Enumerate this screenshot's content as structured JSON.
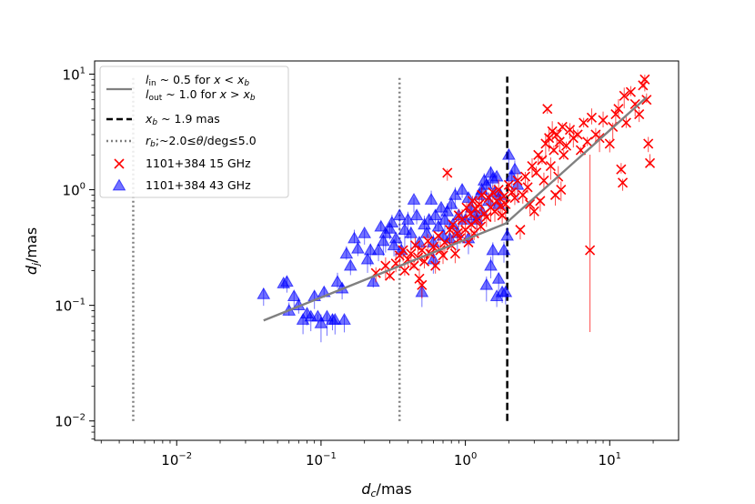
{
  "chart_data": {
    "type": "scatter",
    "title": "",
    "xlabel": "d_c/mas",
    "ylabel": "d_j/mas",
    "xscale": "log",
    "yscale": "log",
    "xlim": [
      0.0027,
      30
    ],
    "ylim": [
      0.0068,
      13
    ],
    "grid": false,
    "legend_position": "top-left",
    "x_ticks": [
      {
        "value": 0.01,
        "base": "10",
        "exp": "−2"
      },
      {
        "value": 0.1,
        "base": "10",
        "exp": "−1"
      },
      {
        "value": 1,
        "base": "10",
        "exp": "0"
      },
      {
        "value": 10,
        "base": "10",
        "exp": "1"
      }
    ],
    "y_ticks": [
      {
        "value": 0.01,
        "base": "10",
        "exp": "−2"
      },
      {
        "value": 0.1,
        "base": "10",
        "exp": "−1"
      },
      {
        "value": 1,
        "base": "10",
        "exp": "0"
      },
      {
        "value": 10,
        "base": "10",
        "exp": "1"
      }
    ],
    "legend": [
      {
        "key": "fit",
        "line1": "l_in ~ 0.5 for x < x_b",
        "line2": "l_out ~ 1.0 for x > x_b"
      },
      {
        "key": "xb",
        "text": "x_b ~ 1.9 mas"
      },
      {
        "key": "rb",
        "text": "r_b;~2.0≤θ/deg≤5.0"
      },
      {
        "key": "s15",
        "text": "1101+384 15 GHz"
      },
      {
        "key": "s43",
        "text": "1101+384 43 GHz"
      }
    ],
    "fit": {
      "color": "#808080",
      "points": [
        [
          0.04,
          0.074
        ],
        [
          1.9,
          0.51
        ],
        [
          18,
          6.3
        ]
      ]
    },
    "xb_line": {
      "x": 1.95,
      "y_range": [
        0.01,
        9.5
      ],
      "color": "#000000"
    },
    "rb_lines": {
      "x": [
        0.005,
        0.35
      ],
      "y_range": [
        0.01,
        9.5
      ],
      "color": "#808080"
    },
    "series": [
      {
        "name": "1101+384 15 GHz",
        "marker": "x",
        "color": "#ff0000",
        "points": [
          [
            0.24,
            0.19
          ],
          [
            0.28,
            0.22
          ],
          [
            0.3,
            0.18
          ],
          [
            0.33,
            0.23
          ],
          [
            0.35,
            0.27
          ],
          [
            0.37,
            0.3
          ],
          [
            0.38,
            0.2
          ],
          [
            0.4,
            0.25
          ],
          [
            0.42,
            0.28
          ],
          [
            0.44,
            0.22
          ],
          [
            0.45,
            0.33
          ],
          [
            0.47,
            0.26
          ],
          [
            0.48,
            0.17
          ],
          [
            0.5,
            0.3
          ],
          [
            0.5,
            0.15
          ],
          [
            0.52,
            0.24
          ],
          [
            0.55,
            0.36
          ],
          [
            0.57,
            0.28
          ],
          [
            0.6,
            0.32
          ],
          [
            0.62,
            0.22
          ],
          [
            0.65,
            0.4
          ],
          [
            0.67,
            0.3
          ],
          [
            0.7,
            0.27
          ],
          [
            0.72,
            0.35
          ],
          [
            0.75,
            1.4
          ],
          [
            0.78,
            0.45
          ],
          [
            0.8,
            0.33
          ],
          [
            0.82,
            0.5
          ],
          [
            0.85,
            0.28
          ],
          [
            0.88,
            0.42
          ],
          [
            0.9,
            0.6
          ],
          [
            0.92,
            0.38
          ],
          [
            0.95,
            0.55
          ],
          [
            1.0,
            0.45
          ],
          [
            1.02,
            0.7
          ],
          [
            1.05,
            0.35
          ],
          [
            1.08,
            0.62
          ],
          [
            1.1,
            0.5
          ],
          [
            1.12,
            0.8
          ],
          [
            1.15,
            0.42
          ],
          [
            1.18,
            0.68
          ],
          [
            1.2,
            0.55
          ],
          [
            1.25,
            0.75
          ],
          [
            1.28,
            0.48
          ],
          [
            1.3,
            0.9
          ],
          [
            1.35,
            0.62
          ],
          [
            1.4,
            0.58
          ],
          [
            1.45,
            0.85
          ],
          [
            1.5,
            0.7
          ],
          [
            1.55,
            0.95
          ],
          [
            1.6,
            0.65
          ],
          [
            1.65,
            0.8
          ],
          [
            1.7,
            1.0
          ],
          [
            1.75,
            0.72
          ],
          [
            1.8,
            0.6
          ],
          [
            1.85,
            0.88
          ],
          [
            1.9,
            0.75
          ],
          [
            2.0,
            1.1
          ],
          [
            2.1,
            0.95
          ],
          [
            2.2,
            0.85
          ],
          [
            2.3,
            1.2
          ],
          [
            2.4,
            0.45
          ],
          [
            2.5,
            0.9
          ],
          [
            2.6,
            1.3
          ],
          [
            2.7,
            1.05
          ],
          [
            2.8,
            0.75
          ],
          [
            2.9,
            1.6
          ],
          [
            3.0,
            0.65
          ],
          [
            3.1,
            1.4
          ],
          [
            3.2,
            2.0
          ],
          [
            3.3,
            0.8
          ],
          [
            3.4,
            1.8
          ],
          [
            3.5,
            1.2
          ],
          [
            3.6,
            2.5
          ],
          [
            3.7,
            5.0
          ],
          [
            3.8,
            2.8
          ],
          [
            3.9,
            1.6
          ],
          [
            4.0,
            3.2
          ],
          [
            4.1,
            2.2
          ],
          [
            4.2,
            0.9
          ],
          [
            4.3,
            3.0
          ],
          [
            4.4,
            1.3
          ],
          [
            4.5,
            2.6
          ],
          [
            4.6,
            1.0
          ],
          [
            4.7,
            3.5
          ],
          [
            4.8,
            2.0
          ],
          [
            5.0,
            2.4
          ],
          [
            5.3,
            3.3
          ],
          [
            5.6,
            2.8
          ],
          [
            6.0,
            3.0
          ],
          [
            6.3,
            2.2
          ],
          [
            6.6,
            3.8
          ],
          [
            7.0,
            2.6
          ],
          [
            7.3,
            0.3
          ],
          [
            7.5,
            4.2
          ],
          [
            8.0,
            3.0
          ],
          [
            8.5,
            2.8
          ],
          [
            9.0,
            4.0
          ],
          [
            10.0,
            2.5
          ],
          [
            10.5,
            3.5
          ],
          [
            11.0,
            4.5
          ],
          [
            11.5,
            5.0
          ],
          [
            12.0,
            1.5
          ],
          [
            12.3,
            1.15
          ],
          [
            12.6,
            6.5
          ],
          [
            13.0,
            3.8
          ],
          [
            14.0,
            7.0
          ],
          [
            15.0,
            5.5
          ],
          [
            16.0,
            4.5
          ],
          [
            17.0,
            8.0
          ],
          [
            17.5,
            9.0
          ],
          [
            18.0,
            6.0
          ],
          [
            18.5,
            2.5
          ],
          [
            19.0,
            1.7
          ]
        ]
      },
      {
        "name": "1101+384 43 GHz",
        "marker": "triangle",
        "color": "#0000ff",
        "points": [
          [
            0.04,
            0.125
          ],
          [
            0.055,
            0.155
          ],
          [
            0.058,
            0.16
          ],
          [
            0.06,
            0.09
          ],
          [
            0.065,
            0.12
          ],
          [
            0.07,
            0.1
          ],
          [
            0.075,
            0.075
          ],
          [
            0.08,
            0.085
          ],
          [
            0.085,
            0.08
          ],
          [
            0.09,
            0.12
          ],
          [
            0.095,
            0.08
          ],
          [
            0.1,
            0.07
          ],
          [
            0.105,
            0.13
          ],
          [
            0.11,
            0.08
          ],
          [
            0.12,
            0.075
          ],
          [
            0.125,
            0.075
          ],
          [
            0.13,
            0.16
          ],
          [
            0.14,
            0.14
          ],
          [
            0.145,
            0.075
          ],
          [
            0.15,
            0.28
          ],
          [
            0.16,
            0.22
          ],
          [
            0.17,
            0.38
          ],
          [
            0.18,
            0.31
          ],
          [
            0.2,
            0.42
          ],
          [
            0.21,
            0.25
          ],
          [
            0.22,
            0.3
          ],
          [
            0.23,
            0.16
          ],
          [
            0.25,
            0.3
          ],
          [
            0.26,
            0.48
          ],
          [
            0.27,
            0.36
          ],
          [
            0.28,
            0.42
          ],
          [
            0.3,
            0.46
          ],
          [
            0.31,
            0.52
          ],
          [
            0.32,
            0.33
          ],
          [
            0.33,
            0.38
          ],
          [
            0.35,
            0.6
          ],
          [
            0.36,
            0.3
          ],
          [
            0.38,
            0.45
          ],
          [
            0.4,
            0.55
          ],
          [
            0.42,
            0.42
          ],
          [
            0.44,
            0.82
          ],
          [
            0.46,
            0.6
          ],
          [
            0.48,
            0.35
          ],
          [
            0.5,
            0.13
          ],
          [
            0.52,
            0.5
          ],
          [
            0.54,
            0.42
          ],
          [
            0.56,
            0.55
          ],
          [
            0.58,
            0.82
          ],
          [
            0.6,
            0.35
          ],
          [
            0.62,
            0.6
          ],
          [
            0.65,
            0.48
          ],
          [
            0.68,
            0.7
          ],
          [
            0.7,
            0.4
          ],
          [
            0.72,
            0.55
          ],
          [
            0.75,
            0.65
          ],
          [
            0.78,
            0.38
          ],
          [
            0.8,
            0.75
          ],
          [
            0.82,
            0.5
          ],
          [
            0.85,
            0.9
          ],
          [
            0.88,
            0.42
          ],
          [
            0.9,
            0.6
          ],
          [
            0.95,
            1.0
          ],
          [
            1.0,
            0.55
          ],
          [
            1.05,
            0.85
          ],
          [
            1.1,
            0.7
          ],
          [
            1.15,
            0.6
          ],
          [
            1.2,
            0.55
          ],
          [
            1.25,
            0.9
          ],
          [
            1.3,
            0.65
          ],
          [
            1.35,
            1.2
          ],
          [
            1.4,
            1.1
          ],
          [
            1.45,
            0.8
          ],
          [
            1.5,
            1.4
          ],
          [
            1.55,
            1.25
          ],
          [
            1.6,
            0.95
          ],
          [
            1.65,
            1.3
          ],
          [
            1.7,
            0.75
          ],
          [
            1.75,
            0.9
          ],
          [
            1.8,
            0.13
          ],
          [
            1.85,
            0.3
          ],
          [
            1.9,
            0.13
          ],
          [
            1.95,
            0.4
          ],
          [
            2.0,
            2.0
          ],
          [
            2.1,
            1.3
          ],
          [
            2.2,
            1.5
          ],
          [
            2.3,
            1.1
          ],
          [
            1.3,
            1.0
          ],
          [
            1.4,
            0.15
          ],
          [
            1.5,
            0.22
          ],
          [
            1.55,
            0.3
          ],
          [
            1.65,
            0.12
          ],
          [
            1.7,
            0.17
          ],
          [
            0.6,
            0.25
          ],
          [
            1.05,
            0.38
          ]
        ]
      }
    ]
  }
}
